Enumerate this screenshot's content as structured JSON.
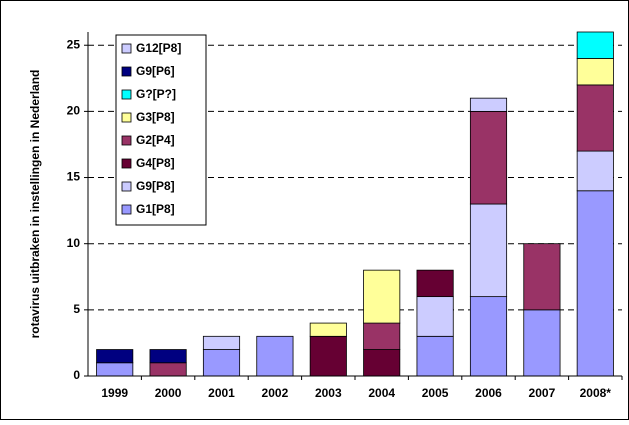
{
  "chart_data": {
    "type": "bar",
    "stacked": true,
    "y_label": "rotavirus uitbraken in instellingen in Nederland",
    "categories": [
      "1999",
      "2000",
      "2001",
      "2002",
      "2003",
      "2004",
      "2005",
      "2006",
      "2007",
      "2008*"
    ],
    "series": [
      {
        "name": "G1[P8]",
        "color": "#9999ff",
        "values": [
          1,
          0,
          2,
          3,
          0,
          0,
          3,
          6,
          5,
          14
        ]
      },
      {
        "name": "G9[P8]",
        "color": "#ccccff",
        "values": [
          0,
          0,
          1,
          0,
          0,
          0,
          3,
          7,
          0,
          3
        ]
      },
      {
        "name": "G4[P8]",
        "color": "#660033",
        "values": [
          0,
          0,
          0,
          0,
          3,
          2,
          2,
          0,
          0,
          0
        ]
      },
      {
        "name": "G2[P4]",
        "color": "#993366",
        "values": [
          0,
          1,
          0,
          0,
          0,
          2,
          0,
          7,
          5,
          5
        ]
      },
      {
        "name": "G3[P8]",
        "color": "#ffff99",
        "values": [
          0,
          0,
          0,
          0,
          1,
          4,
          0,
          0,
          0,
          2
        ]
      },
      {
        "name": "G?[P?]",
        "color": "#00ffff",
        "values": [
          0,
          0,
          0,
          0,
          0,
          0,
          0,
          0,
          0,
          2
        ]
      },
      {
        "name": "G9[P6]",
        "color": "#000080",
        "values": [
          1,
          1,
          0,
          0,
          0,
          0,
          0,
          0,
          0,
          0
        ]
      },
      {
        "name": "G12[P8]",
        "color": "#ccccff",
        "values": [
          0,
          0,
          0,
          0,
          0,
          0,
          0,
          1,
          0,
          0
        ]
      }
    ],
    "ylim": [
      0,
      26
    ],
    "yticks": [
      0,
      5,
      10,
      15,
      20,
      25
    ],
    "grid": true,
    "legend": "upper-left"
  }
}
